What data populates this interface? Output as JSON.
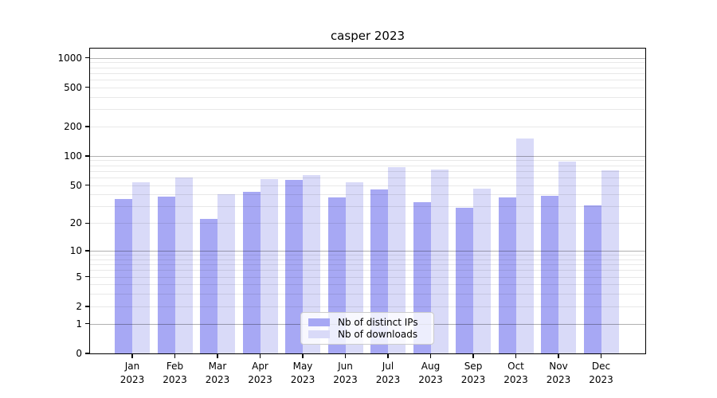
{
  "chart_data": {
    "type": "bar",
    "title": "casper 2023",
    "categories": [
      "Jan 2023",
      "Feb 2023",
      "Mar 2023",
      "Apr 2023",
      "May 2023",
      "Jun 2023",
      "Jul 2023",
      "Aug 2023",
      "Sep 2023",
      "Oct 2023",
      "Nov 2023",
      "Dec 2023"
    ],
    "series": [
      {
        "name": "Nb of distinct IPs",
        "color": "#a7a8f4",
        "values": [
          36,
          38,
          22,
          43,
          57,
          37,
          45,
          33,
          29,
          37,
          39,
          31
        ]
      },
      {
        "name": "Nb of downloads",
        "color": "#d9daf8",
        "values": [
          54,
          60,
          40,
          58,
          63,
          54,
          76,
          72,
          46,
          150,
          87,
          71
        ]
      }
    ],
    "yscale": "log1p",
    "ylim": [
      0,
      1250
    ],
    "yticks": [
      0,
      1,
      2,
      5,
      10,
      20,
      50,
      100,
      200,
      500,
      1000
    ],
    "xlabel": "",
    "ylabel": "",
    "grid": "both",
    "legend_position": "lower center",
    "colors": {
      "grid_major": "#b0b0b0",
      "grid_minor": "#e8e8e8",
      "axis": "#000000",
      "background": "#ffffff"
    }
  }
}
